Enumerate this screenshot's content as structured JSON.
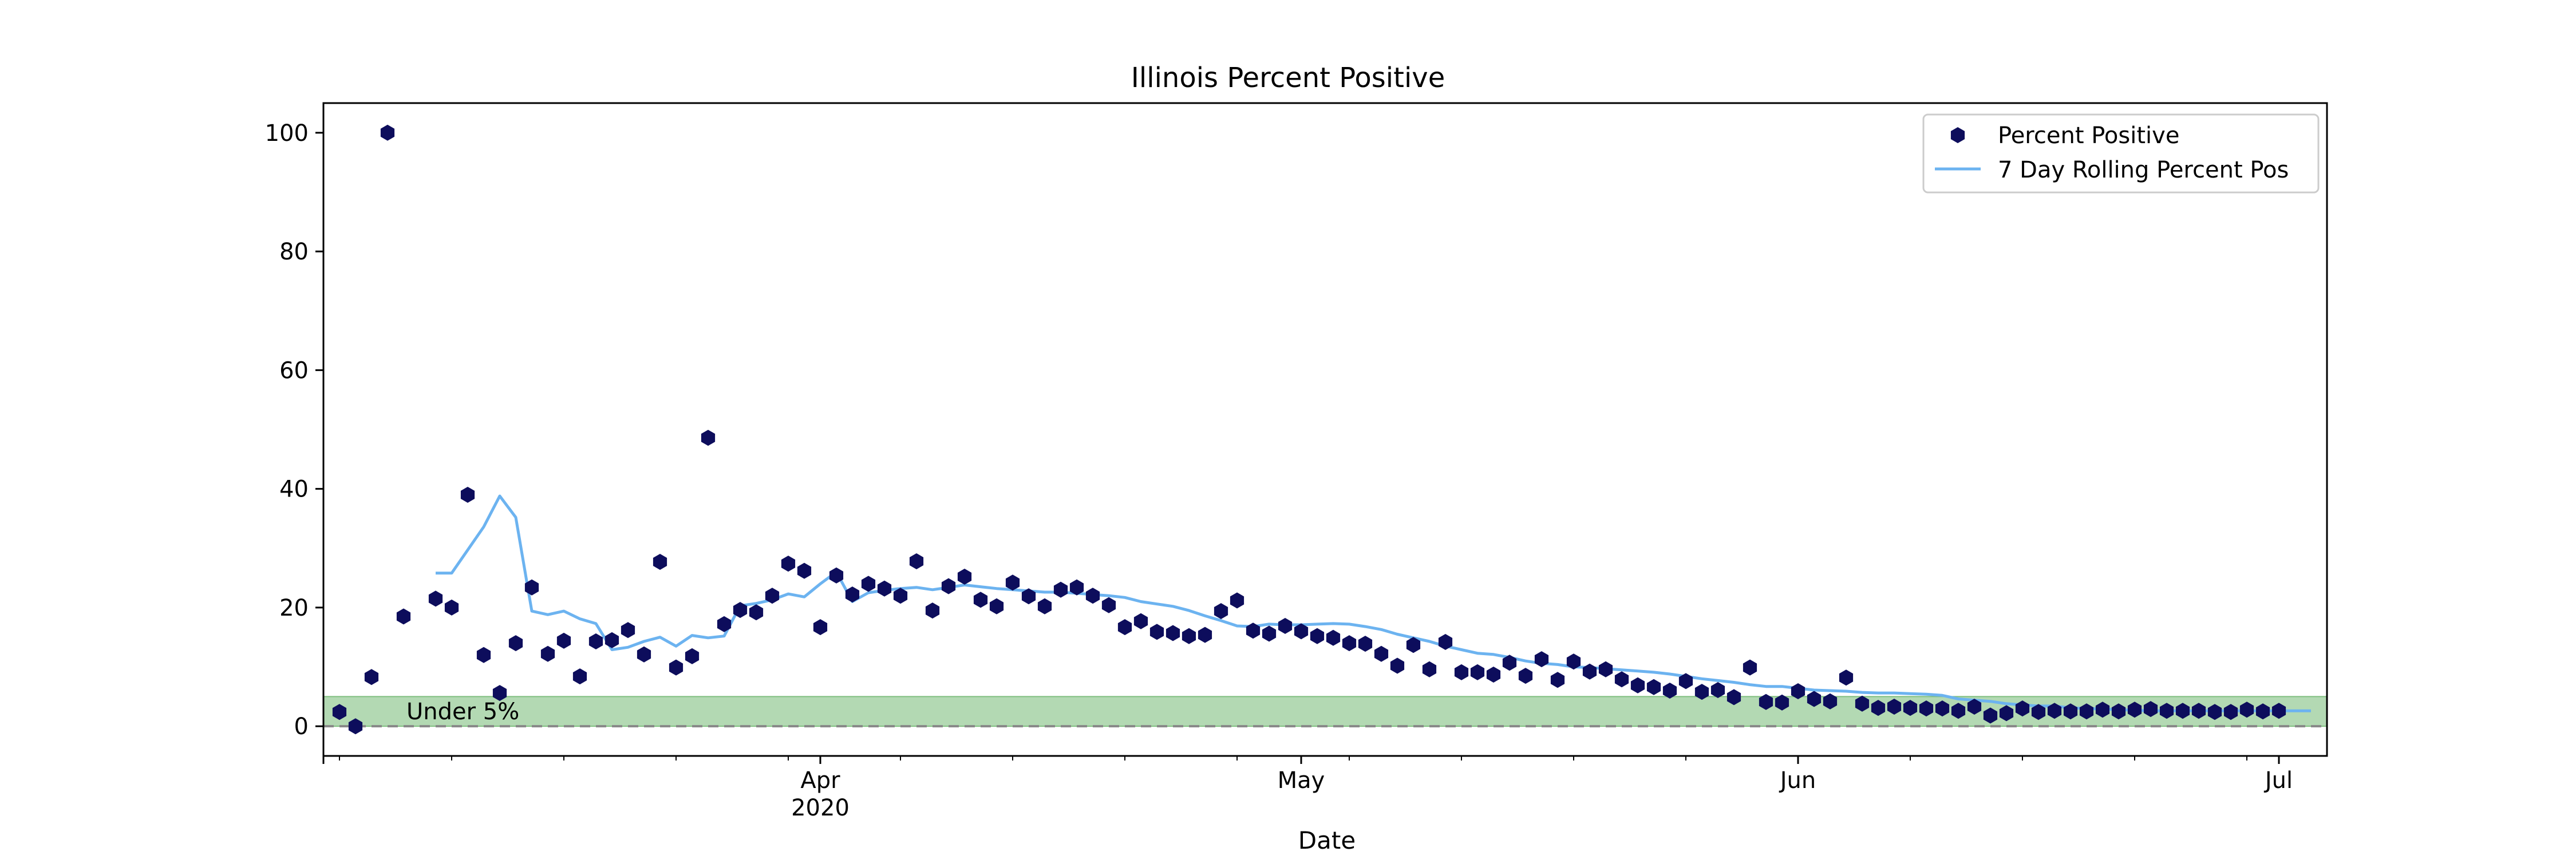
{
  "chart_data": {
    "type": "scatter",
    "title": "Illinois Percent Positive",
    "xlabel": "Date",
    "ylabel": "",
    "xlim": [
      "2020-03-01",
      "2020-07-04"
    ],
    "ylim": [
      -5,
      105
    ],
    "yticks": [
      0,
      20,
      40,
      60,
      80,
      100
    ],
    "xticks": [
      {
        "date": "2020-04-01",
        "label": "Apr",
        "sublabel": "2020"
      },
      {
        "date": "2020-05-01",
        "label": "May",
        "sublabel": ""
      },
      {
        "date": "2020-06-01",
        "label": "Jun",
        "sublabel": ""
      },
      {
        "date": "2020-07-01",
        "label": "Jul",
        "sublabel": ""
      }
    ],
    "grid": false,
    "legend_position": "top-right",
    "threshold_band": {
      "label": "Under 5%",
      "ymin": 0,
      "ymax": 5,
      "color": "#b3d9b3",
      "edge_color": "#7fbf7f"
    },
    "zero_line": {
      "y": 0,
      "color": "#888888",
      "style": "dashed"
    },
    "series": [
      {
        "name": "Percent Positive",
        "kind": "scatter",
        "marker": "hexagon",
        "color": "#0d0d5c",
        "start_date": "2020-03-02",
        "values": [
          2.4,
          0,
          8.3,
          100,
          18.5,
          null,
          21.5,
          20,
          39,
          12,
          5.6,
          14,
          23.4,
          12.2,
          14.4,
          8.4,
          14.3,
          14.5,
          16.2,
          12.1,
          27.7,
          9.9,
          11.8,
          48.6,
          17.2,
          19.6,
          19.2,
          22,
          27.4,
          26.2,
          16.7,
          25.4,
          22.2,
          24,
          23.2,
          22,
          27.8,
          19.5,
          23.6,
          25.2,
          21.3,
          20.2,
          24.2,
          21.9,
          20.2,
          23,
          23.4,
          22,
          20.4,
          16.7,
          17.7,
          15.9,
          15.7,
          15.2,
          15.4,
          19.4,
          21.2,
          16.1,
          15.6,
          16.9,
          16,
          15.2,
          14.9,
          14,
          13.9,
          12.2,
          10.2,
          13.7,
          9.6,
          14.2,
          9.1,
          9.1,
          8.7,
          10.7,
          8.5,
          11.3,
          7.8,
          10.9,
          9.2,
          9.6,
          7.9,
          6.9,
          6.6,
          6,
          7.6,
          5.8,
          6.1,
          4.9,
          9.9,
          4.1,
          4,
          5.9,
          4.6,
          4.2,
          8.2,
          3.8,
          3.1,
          3.3,
          3.1,
          3,
          3,
          2.6,
          3.3,
          1.8,
          2.2,
          3,
          2.4,
          2.6,
          2.5,
          2.5,
          2.8,
          2.5,
          2.8,
          2.9,
          2.6,
          2.6,
          2.6,
          2.4,
          2.4,
          2.8,
          2.5,
          2.6
        ]
      },
      {
        "name": "7 Day Rolling Percent Pos",
        "kind": "line",
        "color": "#6cb3f0",
        "start_date": "2020-03-08",
        "values": [
          25.8,
          25.8,
          29.7,
          33.6,
          38.8,
          35.2,
          19.4,
          18.8,
          19.4,
          18.1,
          17.3,
          12.9,
          13.3,
          14.3,
          15,
          13.5,
          15.3,
          14.9,
          15.2,
          20.3,
          20.7,
          21.3,
          22.3,
          21.8,
          24,
          26,
          21,
          22.5,
          22.9,
          23.2,
          23.4,
          23,
          23.4,
          23.8,
          23.5,
          23.2,
          23,
          22.8,
          22.6,
          22.6,
          22.4,
          22.2,
          22,
          21.7,
          21,
          20.6,
          20.2,
          19.5,
          18.6,
          17.8,
          16.9,
          16.8,
          17.2,
          17.1,
          17.1,
          17.2,
          17.3,
          17.2,
          16.8,
          16.3,
          15.5,
          14.9,
          14.3,
          13.5,
          12.9,
          12.3,
          12.1,
          11.6,
          11,
          10.6,
          10.4,
          10,
          9.9,
          9.7,
          9.5,
          9.3,
          9.1,
          8.8,
          8.4,
          8,
          7.7,
          7.4,
          7,
          6.7,
          6.7,
          6.4,
          6.1,
          6,
          5.9,
          5.7,
          5.6,
          5.6,
          5.5,
          5.4,
          5.2,
          4.6,
          4.4,
          4.2,
          3.8,
          3.6,
          3.4,
          3.4,
          3.1,
          3,
          2.9,
          2.8,
          2.7,
          2.6,
          2.6,
          2.6,
          2.6,
          2.6,
          2.6,
          2.6,
          2.6,
          2.6,
          2.6,
          2.6
        ]
      }
    ]
  }
}
